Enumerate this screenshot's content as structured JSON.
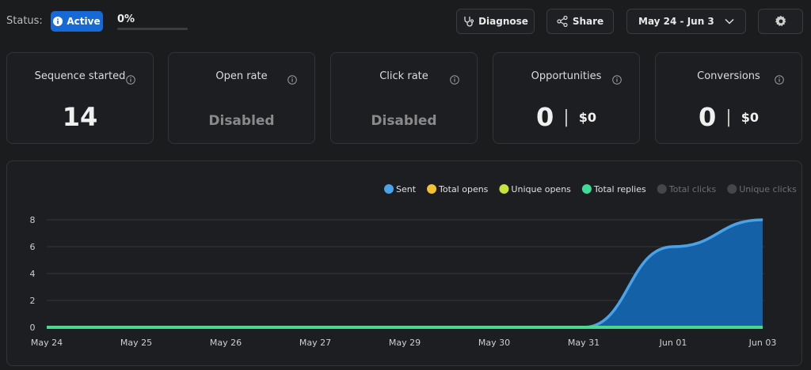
{
  "header": {
    "status_label": "Status:",
    "status": "Active",
    "progress": "0%"
  },
  "buttons": [
    "Diagnose",
    "Share"
  ],
  "date_range": "May 24 - Jun 3",
  "cards": [
    {
      "title": "Sequence started",
      "value": "14"
    },
    {
      "title": "Open rate",
      "value": "Disabled"
    },
    {
      "title": "Click rate",
      "value": "Disabled"
    },
    {
      "title": "Opportunities",
      "value": "0",
      "amount": "$0"
    },
    {
      "title": "Conversions",
      "value": "0",
      "amount": "$0"
    }
  ],
  "chart_data": {
    "type": "area",
    "categories": [
      "May 24",
      "May 25",
      "May 26",
      "May 27",
      "May 29",
      "May 30",
      "May 31",
      "Jun 01",
      "Jun 03"
    ],
    "series": [
      {
        "name": "Sent",
        "color": "#4aa3e8",
        "fill": "#1461a8",
        "visible": true,
        "values": [
          0,
          0,
          0,
          0,
          0,
          0,
          0,
          6,
          8
        ]
      },
      {
        "name": "Total opens",
        "color": "#f2c230",
        "visible": true,
        "values": [
          0,
          0,
          0,
          0,
          0,
          0,
          0,
          0,
          0
        ]
      },
      {
        "name": "Unique opens",
        "color": "#c8e33a",
        "visible": true,
        "values": [
          0,
          0,
          0,
          0,
          0,
          0,
          0,
          0,
          0
        ]
      },
      {
        "name": "Total replies",
        "color": "#3ddc97",
        "visible": true,
        "values": [
          0,
          0,
          0,
          0,
          0,
          0,
          0,
          0,
          0
        ]
      },
      {
        "name": "Total clicks",
        "color": "#8e7cf0",
        "visible": false,
        "values": [
          0,
          0,
          0,
          0,
          0,
          0,
          0,
          0,
          0
        ]
      },
      {
        "name": "Unique clicks",
        "color": "#f08ab0",
        "visible": false,
        "values": [
          0,
          0,
          0,
          0,
          0,
          0,
          0,
          0,
          0
        ]
      }
    ],
    "ylim": [
      0,
      8
    ],
    "yticks": [
      0,
      2,
      4,
      6,
      8
    ],
    "grid": true
  }
}
